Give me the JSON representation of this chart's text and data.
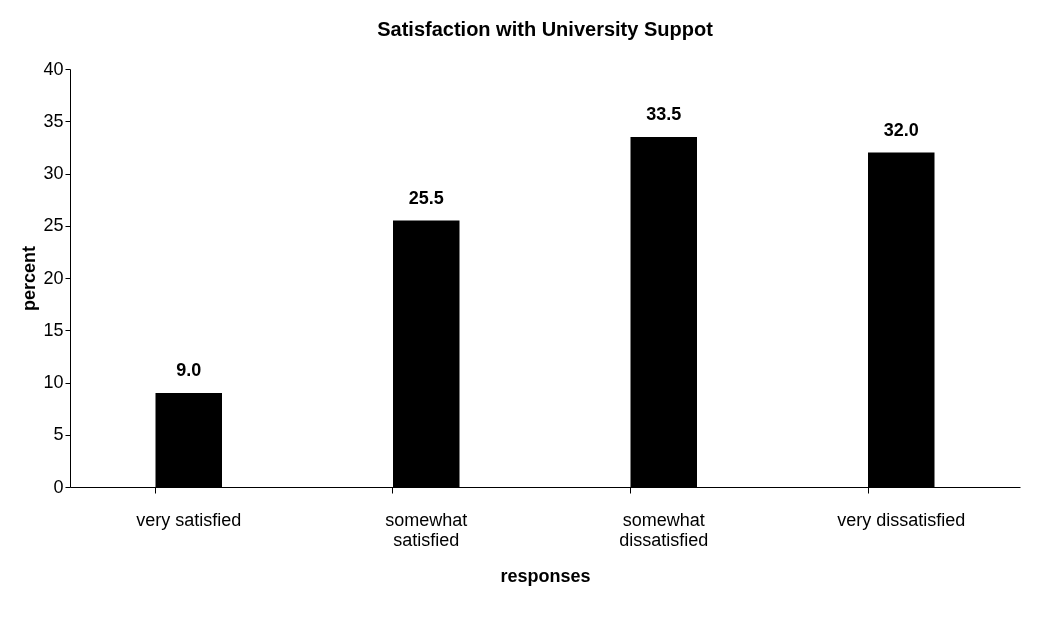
{
  "chart_data": {
    "type": "bar",
    "title": "Satisfaction with University Suppot",
    "xlabel": "responses",
    "ylabel": "percent",
    "categories": [
      "very satisfied",
      "somewhat\nsatisfied",
      "somewhat\ndissatisfied",
      "very dissatisfied"
    ],
    "values": [
      9.0,
      25.5,
      33.5,
      32.0
    ],
    "color": "#000000",
    "value_labels": [
      "9.0",
      "25.5",
      "33.5",
      "32.0"
    ],
    "ylim": [
      0,
      40
    ],
    "yticks": [
      0,
      5,
      10,
      15,
      20,
      25,
      30,
      35,
      40
    ],
    "grid": false
  }
}
